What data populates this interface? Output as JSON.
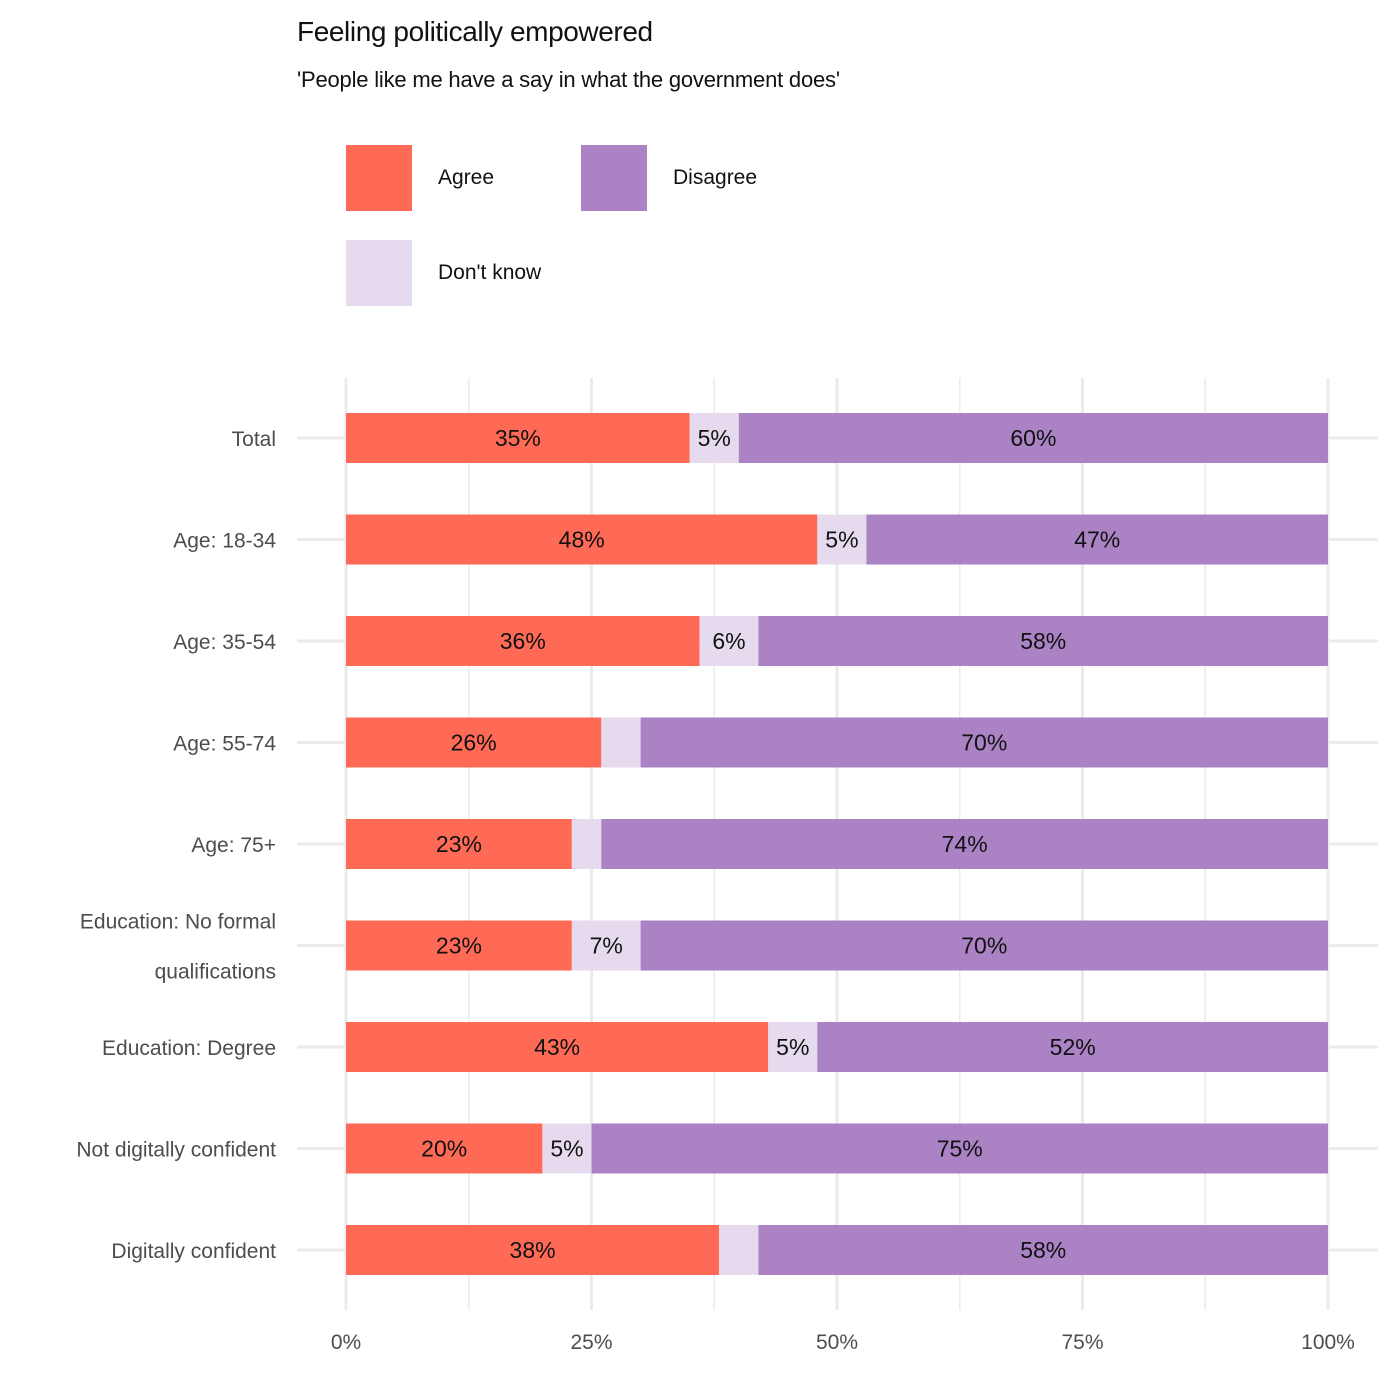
{
  "chart_data": {
    "type": "bar",
    "orientation": "horizontal",
    "stacked": true,
    "title": "Feeling politically empowered",
    "subtitle": "'People like me have a say in what the government does'",
    "xlabel": "",
    "ylabel": "",
    "xlim": [
      0,
      100
    ],
    "x_ticks": [
      "0%",
      "25%",
      "50%",
      "75%",
      "100%"
    ],
    "grid": true,
    "legend_position": "top-left",
    "categories": [
      "Total",
      "Age: 18-34",
      "Age: 35-54",
      "Age: 55-74",
      "Age: 75+",
      "Education: No formal qualifications",
      "Education: Degree",
      "Not digitally confident",
      "Digitally confident"
    ],
    "category_lines": [
      [
        "Total"
      ],
      [
        "Age: 18-34"
      ],
      [
        "Age: 35-54"
      ],
      [
        "Age: 55-74"
      ],
      [
        "Age: 75+"
      ],
      [
        "Education: No formal",
        "qualifications"
      ],
      [
        "Education: Degree"
      ],
      [
        "Not digitally confident"
      ],
      [
        "Digitally confident"
      ]
    ],
    "series": [
      {
        "name": "Agree",
        "color": "#ff6a57",
        "values": [
          35,
          48,
          36,
          26,
          23,
          23,
          43,
          20,
          38
        ],
        "labels": [
          "35%",
          "48%",
          "36%",
          "26%",
          "23%",
          "23%",
          "43%",
          "20%",
          "38%"
        ]
      },
      {
        "name": "Don't know",
        "color": "#e6dbee",
        "values": [
          5,
          5,
          6,
          4,
          3,
          7,
          5,
          5,
          4
        ],
        "labels": [
          "5%",
          "5%",
          "6%",
          "",
          "",
          "7%",
          "5%",
          "5%",
          ""
        ]
      },
      {
        "name": "Disagree",
        "color": "#ab83c5",
        "values": [
          60,
          47,
          58,
          70,
          74,
          70,
          52,
          75,
          58
        ],
        "labels": [
          "60%",
          "47%",
          "58%",
          "70%",
          "74%",
          "70%",
          "52%",
          "75%",
          "58%"
        ]
      }
    ],
    "legend": [
      {
        "label": "Agree",
        "color": "#ff6a57"
      },
      {
        "label": "Disagree",
        "color": "#ab83c5"
      },
      {
        "label": "Don't know",
        "color": "#e6dbee"
      }
    ]
  }
}
